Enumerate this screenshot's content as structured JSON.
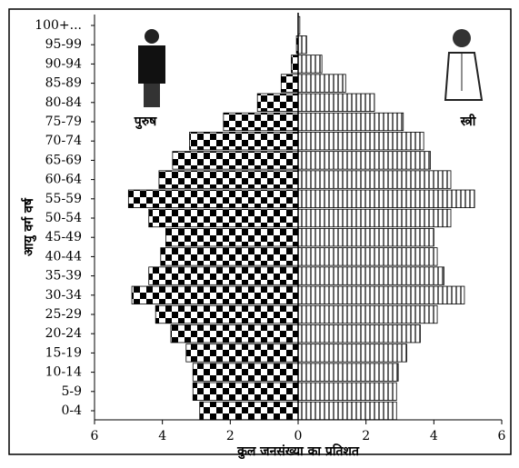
{
  "chart_data": {
    "type": "pyramid",
    "categories": [
      "0-4",
      "5-9",
      "10-14",
      "15-19",
      "20-24",
      "25-29",
      "30-34",
      "35-39",
      "40-44",
      "45-49",
      "50-54",
      "55-59",
      "60-64",
      "65-69",
      "70-74",
      "75-79",
      "80-84",
      "85-89",
      "90-94",
      "95-99",
      "100+..."
    ],
    "series": [
      {
        "name": "पुरुष",
        "color": "#000000",
        "side": "left",
        "values": [
          2.9,
          3.1,
          3.1,
          3.3,
          3.75,
          4.2,
          4.9,
          4.4,
          4.05,
          3.9,
          4.4,
          5.0,
          4.1,
          3.7,
          3.2,
          2.2,
          1.2,
          0.5,
          0.2,
          0.05,
          0
        ]
      },
      {
        "name": "स्त्री",
        "color": "#000000",
        "side": "right",
        "values": [
          2.9,
          2.9,
          2.95,
          3.2,
          3.6,
          4.1,
          4.9,
          4.3,
          4.1,
          4.0,
          4.5,
          5.2,
          4.5,
          3.9,
          3.7,
          3.1,
          2.25,
          1.4,
          0.7,
          0.25,
          0.05
        ]
      }
    ],
    "xlim": [
      -6,
      6
    ],
    "xticks": [
      {
        "value": -6,
        "label": "6"
      },
      {
        "value": -4,
        "label": "4"
      },
      {
        "value": -2,
        "label": "2"
      },
      0,
      2,
      4,
      6
    ],
    "xlabel": "कुल जनसंख्या का प्रतिशत",
    "ylabel": "आयु वर्ग वर्ष"
  }
}
